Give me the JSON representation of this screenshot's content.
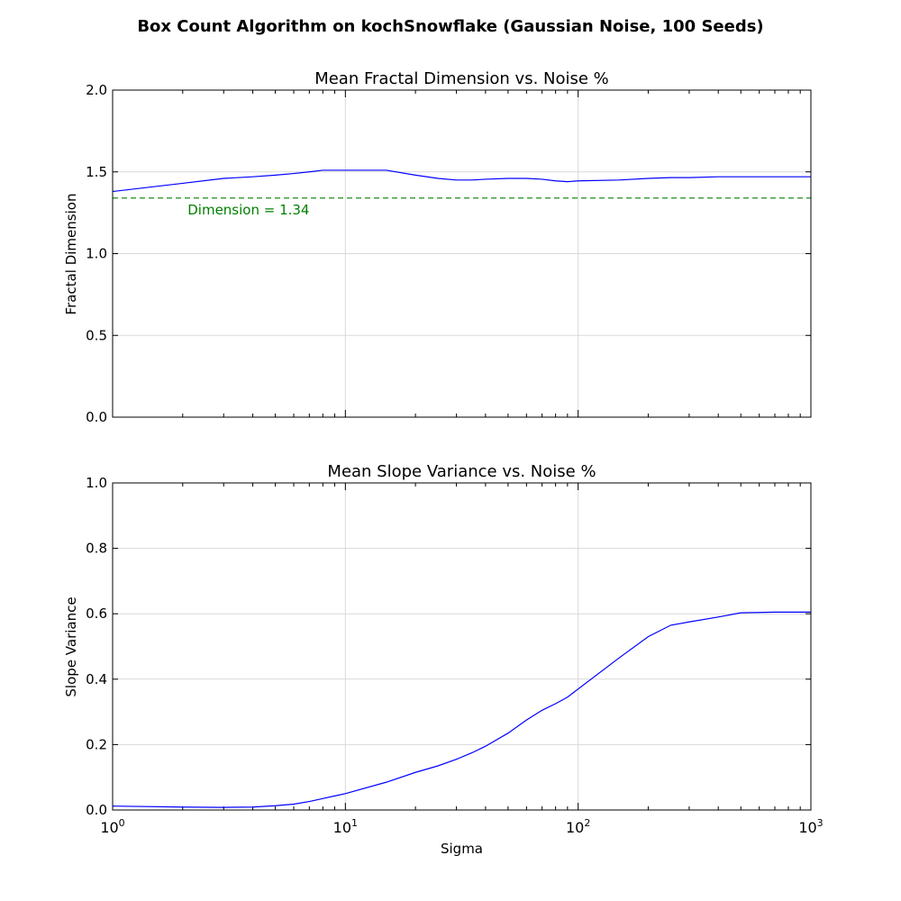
{
  "figure": {
    "title": "Box Count Algorithm on kochSnowflake (Gaussian Noise, 100 Seeds)"
  },
  "colors": {
    "series": "#0000ff",
    "reference": "#008000",
    "grid": "#d9d9d9",
    "axis": "#000000"
  },
  "chart_data": [
    {
      "type": "line",
      "title": "Mean Fractal Dimension vs. Noise %",
      "xlabel": "",
      "ylabel": "Fractal Dimension",
      "xscale": "log",
      "xlim": [
        1,
        1000
      ],
      "ylim": [
        0,
        2
      ],
      "grid": true,
      "x_ticks_labeled": false,
      "y_ticks": [
        "0.0",
        "0.5",
        "1.0",
        "1.5",
        "2.0"
      ],
      "series": [
        {
          "x": [
            1,
            2,
            3,
            4,
            5,
            6,
            7,
            8,
            9,
            10,
            15,
            20,
            25,
            30,
            35,
            40,
            50,
            60,
            70,
            80,
            90,
            100,
            150,
            200,
            250,
            300,
            400,
            500,
            600,
            700,
            800,
            900,
            1000
          ],
          "values": [
            1.38,
            1.43,
            1.46,
            1.47,
            1.48,
            1.49,
            1.5,
            1.51,
            1.51,
            1.51,
            1.51,
            1.48,
            1.46,
            1.45,
            1.45,
            1.455,
            1.46,
            1.46,
            1.455,
            1.445,
            1.44,
            1.445,
            1.45,
            1.46,
            1.465,
            1.465,
            1.47,
            1.47,
            1.47,
            1.47,
            1.47,
            1.47,
            1.47
          ]
        }
      ],
      "reference_line": {
        "y": 1.34,
        "label": "Dimension = 1.34",
        "style": "dashed"
      }
    },
    {
      "type": "line",
      "title": "Mean Slope Variance vs. Noise %",
      "xlabel": "Sigma",
      "ylabel": "Slope Variance",
      "xscale": "log",
      "xlim": [
        1,
        1000
      ],
      "ylim": [
        0,
        1
      ],
      "grid": true,
      "x_ticks": [
        {
          "base": "10",
          "exp": "0"
        },
        {
          "base": "10",
          "exp": "1"
        },
        {
          "base": "10",
          "exp": "2"
        },
        {
          "base": "10",
          "exp": "3"
        }
      ],
      "y_ticks": [
        "0.0",
        "0.2",
        "0.4",
        "0.6",
        "0.8",
        "1.0"
      ],
      "series": [
        {
          "x": [
            1,
            2,
            3,
            4,
            5,
            6,
            7,
            8,
            9,
            10,
            15,
            20,
            25,
            30,
            35,
            40,
            50,
            60,
            70,
            80,
            90,
            100,
            150,
            200,
            250,
            300,
            400,
            500,
            600,
            700,
            800,
            900,
            1000
          ],
          "values": [
            0.012,
            0.009,
            0.008,
            0.009,
            0.013,
            0.018,
            0.026,
            0.035,
            0.043,
            0.05,
            0.085,
            0.115,
            0.135,
            0.155,
            0.175,
            0.195,
            0.235,
            0.275,
            0.305,
            0.325,
            0.345,
            0.37,
            0.465,
            0.53,
            0.565,
            0.575,
            0.59,
            0.603,
            0.604,
            0.605,
            0.605,
            0.605,
            0.605
          ]
        }
      ]
    }
  ]
}
